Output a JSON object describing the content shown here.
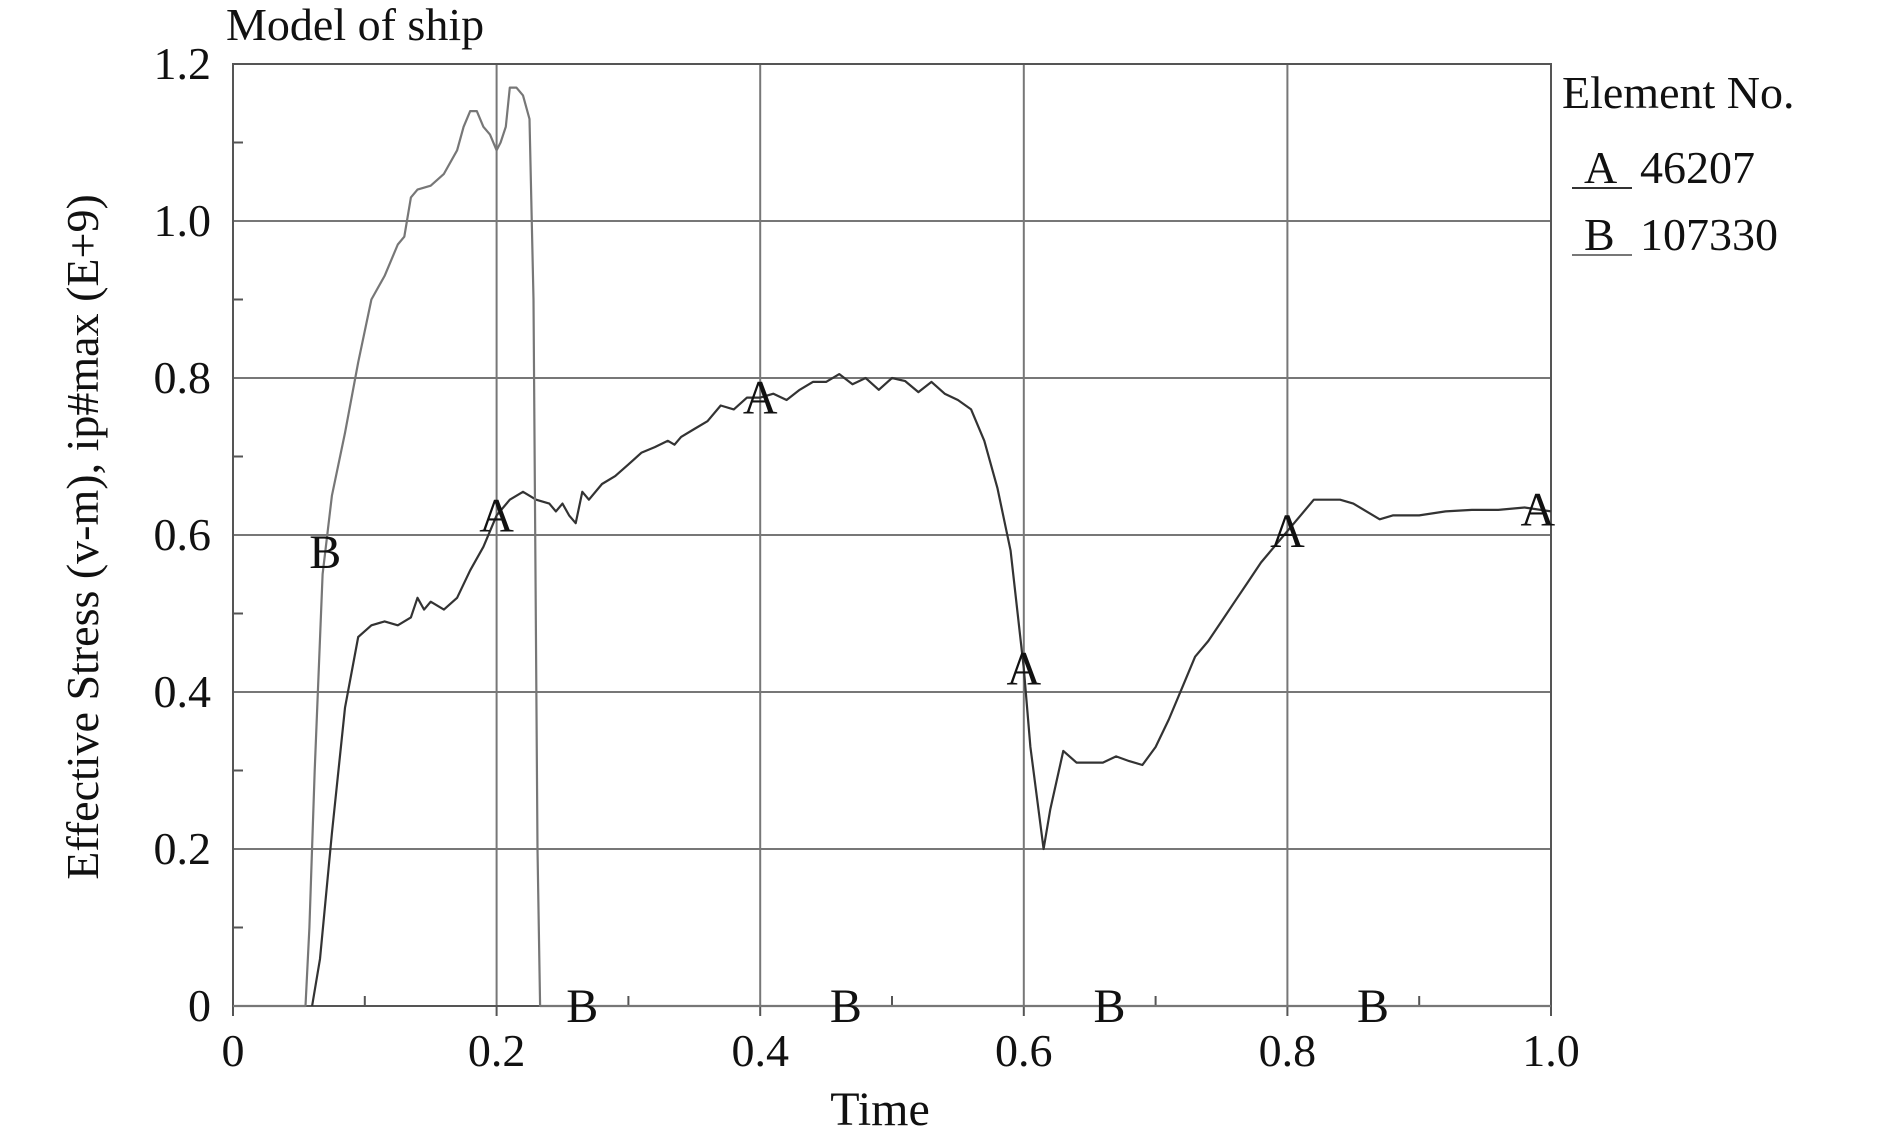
{
  "chart_data": {
    "type": "line",
    "title": "Model of ship",
    "xlabel": "Time",
    "ylabel": "Effective Stress (v-m), ip#max (E+9)",
    "xlim": [
      0,
      1.0
    ],
    "ylim": [
      0,
      1.2
    ],
    "x_ticks": [
      "0",
      "0.2",
      "0.4",
      "0.6",
      "0.8",
      "1.0"
    ],
    "y_ticks": [
      "0",
      "0.2",
      "0.4",
      "0.6",
      "0.8",
      "1.0",
      "1.2"
    ],
    "grid": true,
    "legend": {
      "title": "Element No.",
      "position": "top-right",
      "entries": [
        {
          "letter": "A",
          "id": "46207"
        },
        {
          "letter": "B",
          "id": "107330"
        }
      ]
    },
    "series": [
      {
        "name": "A",
        "label": "46207",
        "color": "#333333",
        "points": [
          [
            0.06,
            0
          ],
          [
            0.066,
            0.06
          ],
          [
            0.075,
            0.22
          ],
          [
            0.085,
            0.38
          ],
          [
            0.095,
            0.47
          ],
          [
            0.105,
            0.485
          ],
          [
            0.115,
            0.49
          ],
          [
            0.125,
            0.485
          ],
          [
            0.135,
            0.495
          ],
          [
            0.14,
            0.52
          ],
          [
            0.145,
            0.505
          ],
          [
            0.15,
            0.515
          ],
          [
            0.16,
            0.505
          ],
          [
            0.17,
            0.52
          ],
          [
            0.18,
            0.555
          ],
          [
            0.19,
            0.585
          ],
          [
            0.2,
            0.625
          ],
          [
            0.21,
            0.645
          ],
          [
            0.22,
            0.655
          ],
          [
            0.23,
            0.645
          ],
          [
            0.24,
            0.64
          ],
          [
            0.245,
            0.63
          ],
          [
            0.25,
            0.64
          ],
          [
            0.255,
            0.625
          ],
          [
            0.26,
            0.615
          ],
          [
            0.265,
            0.655
          ],
          [
            0.27,
            0.645
          ],
          [
            0.28,
            0.665
          ],
          [
            0.29,
            0.675
          ],
          [
            0.3,
            0.69
          ],
          [
            0.31,
            0.705
          ],
          [
            0.32,
            0.712
          ],
          [
            0.33,
            0.72
          ],
          [
            0.335,
            0.715
          ],
          [
            0.34,
            0.725
          ],
          [
            0.35,
            0.735
          ],
          [
            0.36,
            0.745
          ],
          [
            0.37,
            0.765
          ],
          [
            0.38,
            0.76
          ],
          [
            0.39,
            0.775
          ],
          [
            0.4,
            0.775
          ],
          [
            0.41,
            0.78
          ],
          [
            0.42,
            0.772
          ],
          [
            0.43,
            0.785
          ],
          [
            0.44,
            0.795
          ],
          [
            0.45,
            0.795
          ],
          [
            0.46,
            0.805
          ],
          [
            0.47,
            0.792
          ],
          [
            0.48,
            0.8
          ],
          [
            0.49,
            0.785
          ],
          [
            0.5,
            0.8
          ],
          [
            0.51,
            0.796
          ],
          [
            0.52,
            0.782
          ],
          [
            0.53,
            0.795
          ],
          [
            0.54,
            0.78
          ],
          [
            0.55,
            0.772
          ],
          [
            0.56,
            0.76
          ],
          [
            0.57,
            0.72
          ],
          [
            0.58,
            0.66
          ],
          [
            0.59,
            0.58
          ],
          [
            0.6,
            0.43
          ],
          [
            0.605,
            0.33
          ],
          [
            0.615,
            0.2
          ],
          [
            0.62,
            0.25
          ],
          [
            0.63,
            0.325
          ],
          [
            0.64,
            0.31
          ],
          [
            0.65,
            0.31
          ],
          [
            0.66,
            0.31
          ],
          [
            0.67,
            0.318
          ],
          [
            0.68,
            0.312
          ],
          [
            0.69,
            0.307
          ],
          [
            0.7,
            0.33
          ],
          [
            0.71,
            0.365
          ],
          [
            0.72,
            0.405
          ],
          [
            0.73,
            0.445
          ],
          [
            0.74,
            0.465
          ],
          [
            0.75,
            0.49
          ],
          [
            0.76,
            0.515
          ],
          [
            0.77,
            0.54
          ],
          [
            0.78,
            0.565
          ],
          [
            0.79,
            0.585
          ],
          [
            0.8,
            0.605
          ],
          [
            0.81,
            0.625
          ],
          [
            0.82,
            0.645
          ],
          [
            0.83,
            0.645
          ],
          [
            0.84,
            0.645
          ],
          [
            0.85,
            0.64
          ],
          [
            0.86,
            0.63
          ],
          [
            0.87,
            0.62
          ],
          [
            0.88,
            0.625
          ],
          [
            0.9,
            0.625
          ],
          [
            0.92,
            0.63
          ],
          [
            0.94,
            0.632
          ],
          [
            0.96,
            0.632
          ],
          [
            0.98,
            0.635
          ],
          [
            1.0,
            0.63
          ]
        ],
        "marker_x": [
          0.2,
          0.4,
          0.6,
          0.8,
          0.99
        ]
      },
      {
        "name": "B",
        "label": "107330",
        "color": "#777777",
        "points": [
          [
            0,
            0
          ],
          [
            0.055,
            0
          ],
          [
            0.058,
            0.1
          ],
          [
            0.062,
            0.3
          ],
          [
            0.068,
            0.55
          ],
          [
            0.075,
            0.65
          ],
          [
            0.085,
            0.73
          ],
          [
            0.095,
            0.82
          ],
          [
            0.105,
            0.9
          ],
          [
            0.115,
            0.93
          ],
          [
            0.125,
            0.97
          ],
          [
            0.13,
            0.98
          ],
          [
            0.135,
            1.03
          ],
          [
            0.14,
            1.04
          ],
          [
            0.15,
            1.045
          ],
          [
            0.16,
            1.06
          ],
          [
            0.17,
            1.09
          ],
          [
            0.175,
            1.12
          ],
          [
            0.18,
            1.14
          ],
          [
            0.185,
            1.14
          ],
          [
            0.19,
            1.12
          ],
          [
            0.195,
            1.11
          ],
          [
            0.2,
            1.09
          ],
          [
            0.203,
            1.1
          ],
          [
            0.207,
            1.12
          ],
          [
            0.21,
            1.17
          ],
          [
            0.215,
            1.17
          ],
          [
            0.22,
            1.16
          ],
          [
            0.225,
            1.13
          ],
          [
            0.228,
            0.9
          ],
          [
            0.231,
            0.2
          ],
          [
            0.233,
            0
          ],
          [
            0.3,
            0
          ],
          [
            0.4,
            0
          ],
          [
            0.5,
            0
          ],
          [
            0.6,
            0
          ],
          [
            0.7,
            0
          ],
          [
            0.8,
            0
          ],
          [
            0.9,
            0
          ],
          [
            1.0,
            0
          ]
        ],
        "marker_x": [
          0.07,
          0.265,
          0.465,
          0.665,
          0.865
        ]
      }
    ]
  }
}
